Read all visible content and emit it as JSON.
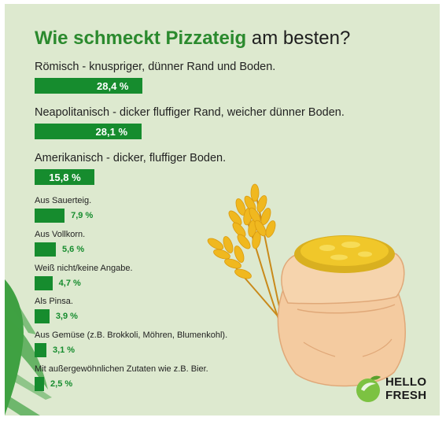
{
  "title": {
    "highlight": "Wie schmeckt Pizzateig",
    "rest": " am besten?"
  },
  "colors": {
    "background": "#dde9cf",
    "bar": "#168c2e",
    "accent": "#2b8a2e",
    "logo": "#7cc242"
  },
  "chart_data": {
    "type": "bar",
    "orientation": "horizontal",
    "title": "Wie schmeckt Pizzateig am besten?",
    "unit": "%",
    "categories": [
      "Römisch - knuspriger, dünner Rand und Boden.",
      "Neapolitanisch - dicker fluffiger Rand, weicher dünner Boden.",
      "Amerikanisch - dicker, fluffiger Boden.",
      "Aus Sauerteig.",
      "Aus Vollkorn.",
      "Weiß nicht/keine Angabe.",
      "Als Pinsa.",
      "Aus Gemüse (z.B. Brokkoli, Möhren, Blumenkohl).",
      "Mit außergewöhnlichen Zutaten wie z.B. Bier."
    ],
    "values": [
      28.4,
      28.1,
      15.8,
      7.9,
      5.6,
      4.7,
      3.9,
      3.1,
      2.5
    ],
    "value_labels": [
      "28,4 %",
      "28,1 %",
      "15,8 %",
      "7,9 %",
      "5,6 %",
      "4,7 %",
      "3,9 %",
      "3,1 %",
      "2,5 %"
    ]
  },
  "logo": {
    "line1": "HELLO",
    "line2": "FRESH",
    "icon": "lime-icon"
  }
}
